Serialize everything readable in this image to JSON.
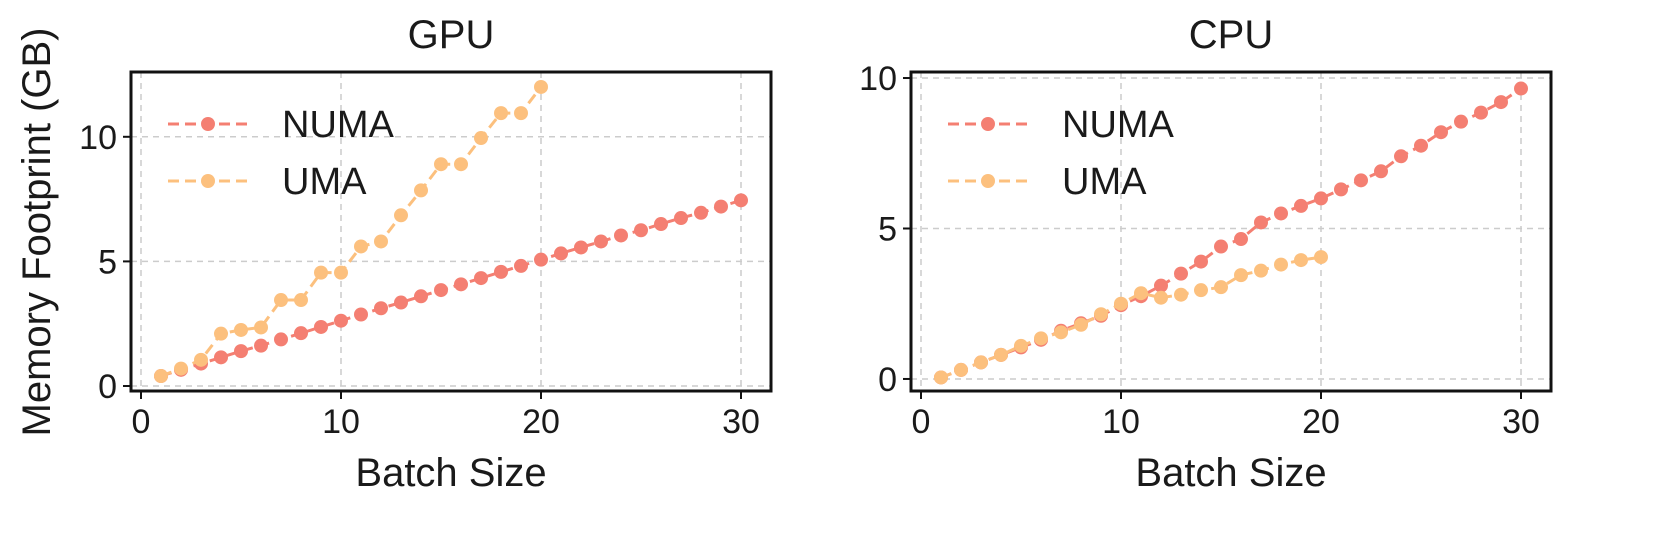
{
  "figure": {
    "shared_ylabel": "Memory Footprint (GB)"
  },
  "chart_data": [
    {
      "type": "line",
      "title": "GPU",
      "xlabel": "Batch Size",
      "ylabel": "",
      "xlim": [
        -0.5,
        31.5
      ],
      "ylim": [
        -0.2,
        12.6
      ],
      "xticks": [
        0,
        10,
        20,
        30
      ],
      "yticks": [
        0,
        5,
        10
      ],
      "grid": true,
      "legend_position": "top-left",
      "series": [
        {
          "name": "NUMA",
          "color": "#f47f72",
          "x": [
            1,
            2,
            3,
            4,
            5,
            6,
            7,
            8,
            9,
            10,
            11,
            12,
            13,
            14,
            15,
            16,
            17,
            18,
            19,
            20,
            21,
            22,
            23,
            24,
            25,
            26,
            27,
            28,
            29,
            30
          ],
          "y": [
            0.4,
            0.65,
            0.9,
            1.15,
            1.4,
            1.62,
            1.87,
            2.12,
            2.37,
            2.62,
            2.87,
            3.12,
            3.35,
            3.6,
            3.85,
            4.08,
            4.33,
            4.58,
            4.82,
            5.07,
            5.32,
            5.56,
            5.8,
            6.04,
            6.25,
            6.5,
            6.74,
            6.95,
            7.2,
            7.45
          ]
        },
        {
          "name": "UMA",
          "color": "#fcc07e",
          "x": [
            1,
            2,
            3,
            4,
            5,
            6,
            7,
            8,
            9,
            10,
            11,
            12,
            13,
            14,
            15,
            16,
            17,
            18,
            19,
            20
          ],
          "y": [
            0.4,
            0.7,
            1.05,
            2.1,
            2.25,
            2.35,
            3.45,
            3.45,
            4.55,
            4.55,
            5.6,
            5.8,
            6.85,
            7.85,
            8.9,
            8.9,
            9.95,
            10.95,
            10.95,
            12.0
          ]
        }
      ]
    },
    {
      "type": "line",
      "title": "CPU",
      "xlabel": "Batch Size",
      "ylabel": "",
      "xlim": [
        -0.5,
        31.5
      ],
      "ylim": [
        -0.4,
        10.2
      ],
      "xticks": [
        0,
        10,
        20,
        30
      ],
      "yticks": [
        0,
        5,
        10
      ],
      "grid": true,
      "legend_position": "top-left",
      "series": [
        {
          "name": "NUMA",
          "color": "#f47f72",
          "x": [
            1,
            2,
            3,
            4,
            5,
            6,
            7,
            8,
            9,
            10,
            11,
            12,
            13,
            14,
            15,
            16,
            17,
            18,
            19,
            20,
            21,
            22,
            23,
            24,
            25,
            26,
            27,
            28,
            29,
            30
          ],
          "y": [
            0.05,
            0.3,
            0.55,
            0.8,
            1.05,
            1.3,
            1.6,
            1.85,
            2.1,
            2.45,
            2.75,
            3.1,
            3.5,
            3.9,
            4.4,
            4.65,
            5.2,
            5.5,
            5.75,
            6.0,
            6.3,
            6.6,
            6.9,
            7.4,
            7.75,
            8.2,
            8.55,
            8.85,
            9.2,
            9.65
          ]
        },
        {
          "name": "UMA",
          "color": "#fcc07e",
          "x": [
            1,
            2,
            3,
            4,
            5,
            6,
            7,
            8,
            9,
            10,
            11,
            12,
            13,
            14,
            15,
            16,
            17,
            18,
            19,
            20
          ],
          "y": [
            0.05,
            0.3,
            0.55,
            0.8,
            1.1,
            1.35,
            1.55,
            1.8,
            2.15,
            2.5,
            2.85,
            2.7,
            2.8,
            2.95,
            3.05,
            3.45,
            3.6,
            3.8,
            3.95,
            4.05
          ]
        }
      ]
    }
  ]
}
